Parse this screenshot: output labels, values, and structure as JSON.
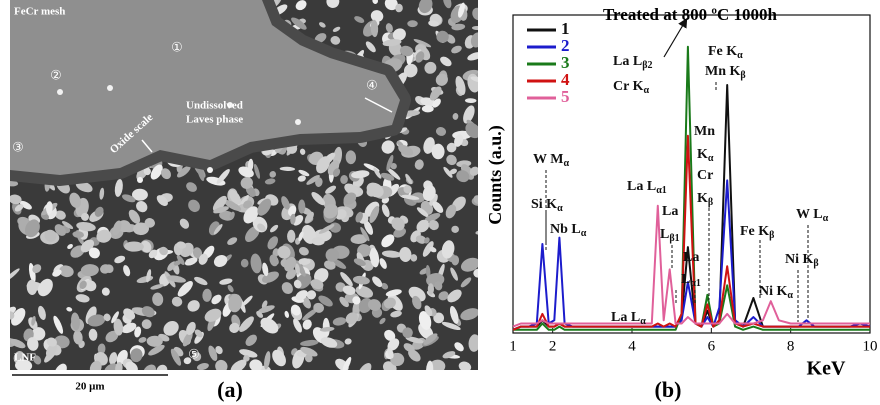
{
  "micrograph": {
    "label": "FeCr mesh",
    "regions": [
      "①",
      "②",
      "③",
      "④",
      "⑤"
    ],
    "undissolved": "Undissolved",
    "laves": "Laves phase",
    "oxide": "Oxide scale",
    "lnf": "LNF",
    "scale_bar": "20 μm",
    "panel": "(a)"
  },
  "chart_data": {
    "type": "line",
    "title": "Treated at 800 ºC 1000h",
    "panel": "(b)",
    "x_label": "KeV",
    "y_label": "Counts (a.u.)",
    "x": [
      1.0,
      1.2,
      1.4,
      1.6,
      1.74,
      1.9,
      2.04,
      2.17,
      2.3,
      2.5,
      3.0,
      3.5,
      4.0,
      4.3,
      4.5,
      4.65,
      4.8,
      4.95,
      5.1,
      5.25,
      5.41,
      5.6,
      5.75,
      5.9,
      6.05,
      6.2,
      6.4,
      6.6,
      6.8,
      7.06,
      7.3,
      7.5,
      7.7,
      8.0,
      8.2,
      8.4,
      8.6,
      9.0,
      9.5,
      9.75,
      10.0
    ],
    "series": [
      {
        "name": "1",
        "color": "#111111",
        "values": [
          1,
          2,
          2,
          2,
          4,
          2,
          2,
          3,
          2,
          2,
          2,
          2,
          2,
          2,
          2,
          2,
          2,
          2,
          2,
          5,
          27,
          3,
          2,
          7,
          2,
          4,
          78,
          4,
          2,
          11,
          2,
          2,
          2,
          2,
          2,
          2,
          2,
          2,
          2,
          2,
          2
        ]
      },
      {
        "name": "2",
        "color": "#1c1ccc",
        "values": [
          1,
          2,
          2,
          3,
          28,
          3,
          4,
          30,
          3,
          2,
          2,
          2,
          2,
          2,
          2,
          2,
          2,
          2,
          2,
          4,
          16,
          3,
          2,
          5,
          2,
          8,
          48,
          4,
          2,
          5,
          2,
          2,
          2,
          2,
          2,
          4,
          2,
          2,
          2,
          3,
          2
        ]
      },
      {
        "name": "3",
        "color": "#1a7a1a",
        "values": [
          1,
          1,
          1,
          1,
          3,
          1,
          1,
          2,
          1,
          1,
          1,
          1,
          1,
          1,
          1,
          1,
          1,
          1,
          1,
          6,
          90,
          3,
          2,
          12,
          2,
          3,
          15,
          2,
          1,
          2,
          1,
          1,
          1,
          1,
          1,
          1,
          1,
          1,
          1,
          1,
          1
        ]
      },
      {
        "name": "4",
        "color": "#d01212",
        "values": [
          1,
          2,
          2,
          2,
          6,
          2,
          2,
          3,
          2,
          2,
          2,
          2,
          2,
          2,
          2,
          3,
          2,
          3,
          2,
          6,
          62,
          3,
          2,
          9,
          2,
          4,
          21,
          3,
          2,
          3,
          2,
          2,
          2,
          2,
          2,
          2,
          2,
          2,
          2,
          2,
          2
        ]
      },
      {
        "name": "5",
        "color": "#e0609a",
        "values": [
          2,
          3,
          3,
          3,
          4,
          3,
          3,
          3,
          3,
          3,
          3,
          3,
          3,
          3,
          3,
          40,
          4,
          20,
          3,
          3,
          5,
          3,
          3,
          3,
          3,
          3,
          6,
          3,
          3,
          3,
          4,
          10,
          4,
          3,
          3,
          3,
          3,
          3,
          3,
          3,
          3
        ]
      }
    ],
    "xlim": [
      1,
      10
    ],
    "xticks": [
      1,
      2,
      4,
      6,
      8,
      10
    ],
    "ylim": [
      0,
      100
    ],
    "annotations": [
      {
        "base": "La L",
        "sub": "β2"
      },
      {
        "base": "Cr K",
        "sub": "α"
      },
      {
        "base": "Fe K",
        "sub": "α"
      },
      {
        "base": "Mn K",
        "sub": "β"
      },
      {
        "base": "Mn"
      },
      {
        "base": "K",
        "sub": "α"
      },
      {
        "base": "Cr"
      },
      {
        "base": "K",
        "sub": "β"
      },
      {
        "base": "W M",
        "sub": "α"
      },
      {
        "base": "Si K",
        "sub": "α"
      },
      {
        "base": "Nb L",
        "sub": "α"
      },
      {
        "base": "La L",
        "sub": "α1"
      },
      {
        "base": "La"
      },
      {
        "base": "L",
        "sub": "β1"
      },
      {
        "base": "La"
      },
      {
        "base": "L",
        "sub": "α1"
      },
      {
        "base": "La L",
        "sub": "α"
      },
      {
        "base": "Fe K",
        "sub": "β"
      },
      {
        "base": "Ni K",
        "sub": "α"
      },
      {
        "base": "W L",
        "sub": "α"
      },
      {
        "base": "Ni K",
        "sub": "β"
      }
    ]
  }
}
